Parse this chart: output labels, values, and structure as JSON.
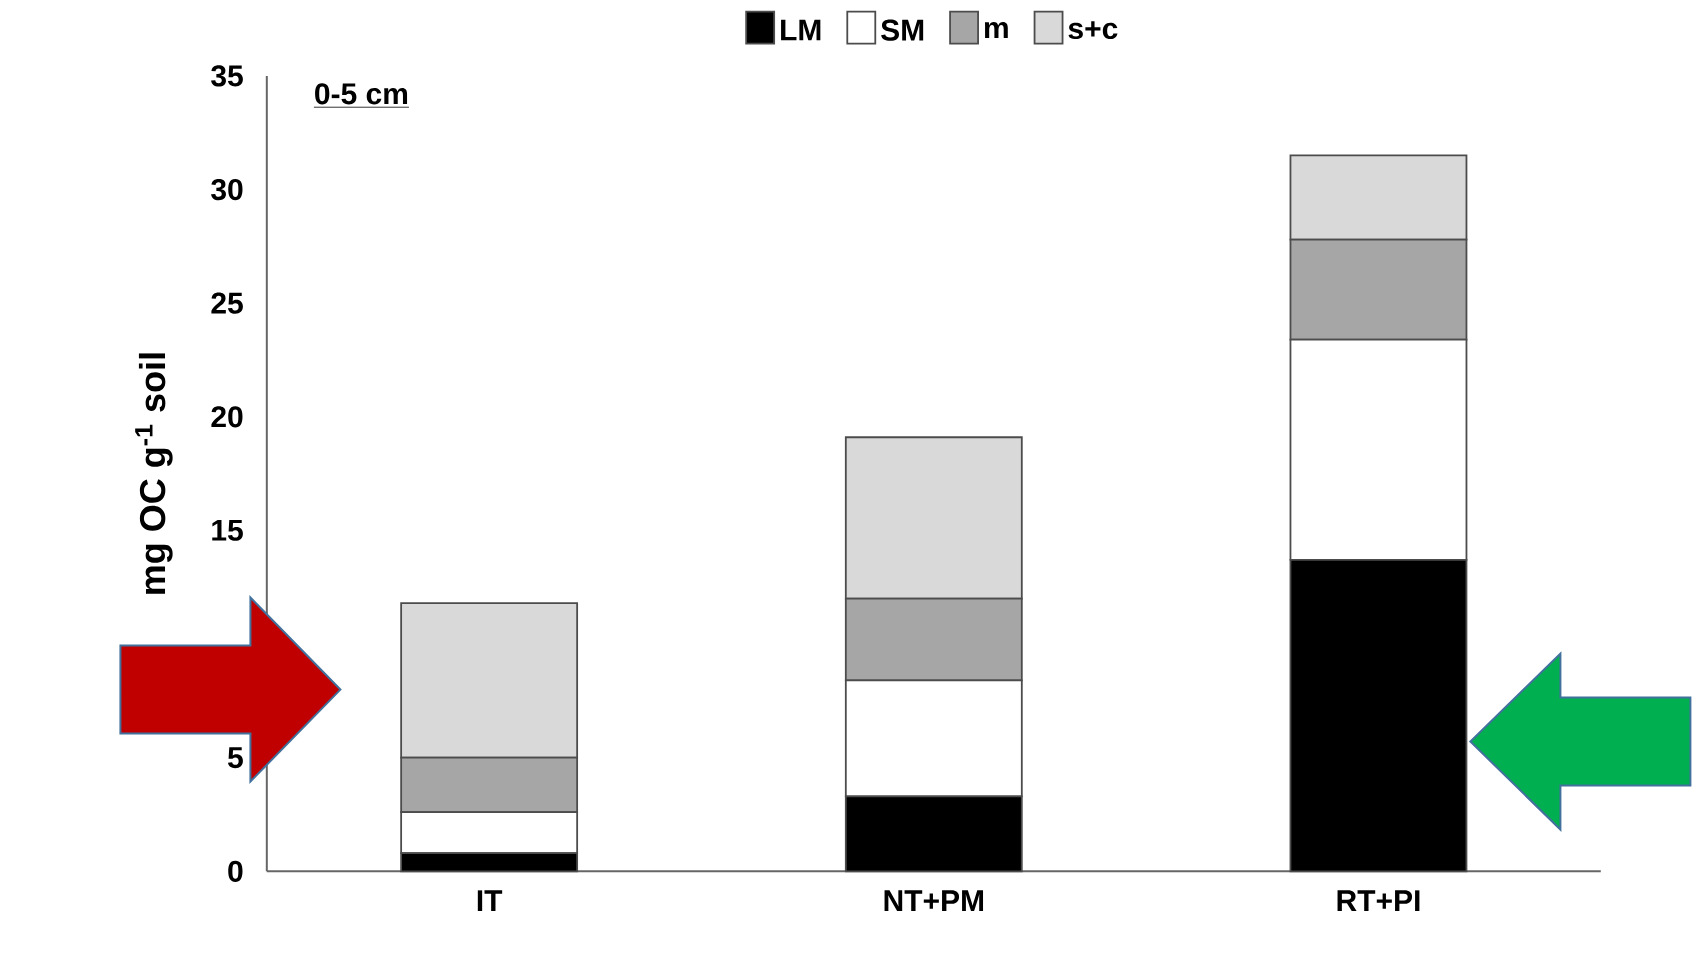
{
  "chart_data": {
    "type": "bar",
    "stacked": true,
    "categories": [
      "IT",
      "NT+PM",
      "RT+PI"
    ],
    "ylabel": "mg OC g$^{-1}$ soil",
    "annotations": [
      "0-5 cm"
    ],
    "ylim": [
      0,
      35
    ],
    "yticks": [
      0,
      5,
      15,
      20,
      25,
      30,
      35
    ],
    "legend": "top",
    "series": [
      {
        "name": "LM",
        "color": "#000000",
        "values": [
          0.8,
          3.3,
          13.7
        ]
      },
      {
        "name": "SM",
        "color": "#ffffff",
        "values": [
          1.8,
          5.1,
          9.7
        ]
      },
      {
        "name": "m",
        "color": "#a6a6a6",
        "values": [
          2.4,
          3.6,
          4.4
        ]
      },
      {
        "name": "s+c",
        "color": "#d9d9d9",
        "values": [
          6.8,
          7.1,
          3.7
        ]
      }
    ]
  }
}
